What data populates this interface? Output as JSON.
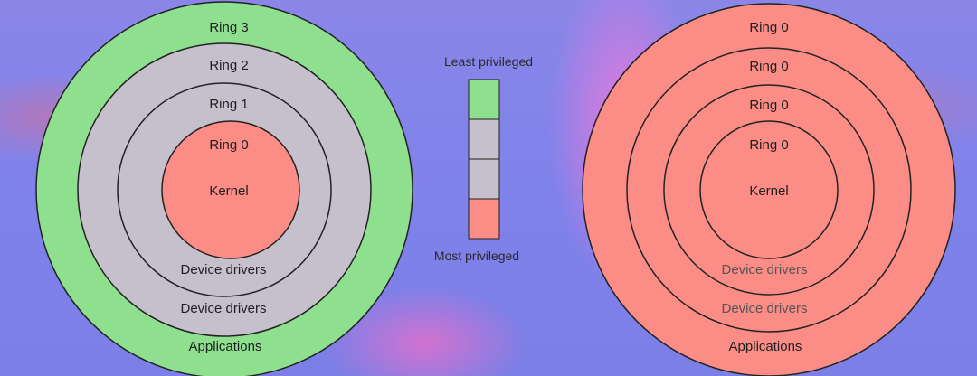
{
  "colors": {
    "user_ring": "#8fe08e",
    "middle_ring": "#c5c0cb",
    "kernel_ring": "#fb8c86",
    "outline": "#222222"
  },
  "left_diagram": {
    "rings": [
      "Ring 3",
      "Ring 2",
      "Ring 1",
      "Ring 0"
    ],
    "core": "Kernel",
    "layers": [
      "Device drivers",
      "Device drivers",
      "Applications"
    ]
  },
  "right_diagram": {
    "rings": [
      "Ring 0",
      "Ring 0",
      "Ring 0",
      "Ring 0"
    ],
    "core": "Kernel",
    "layers": [
      "Device drivers",
      "Device drivers",
      "Applications"
    ]
  },
  "privilege_legend": {
    "top_label": "Least privileged",
    "bottom_label": "Most privileged",
    "levels": [
      "ring-3",
      "ring-2",
      "ring-1",
      "ring-0"
    ]
  }
}
